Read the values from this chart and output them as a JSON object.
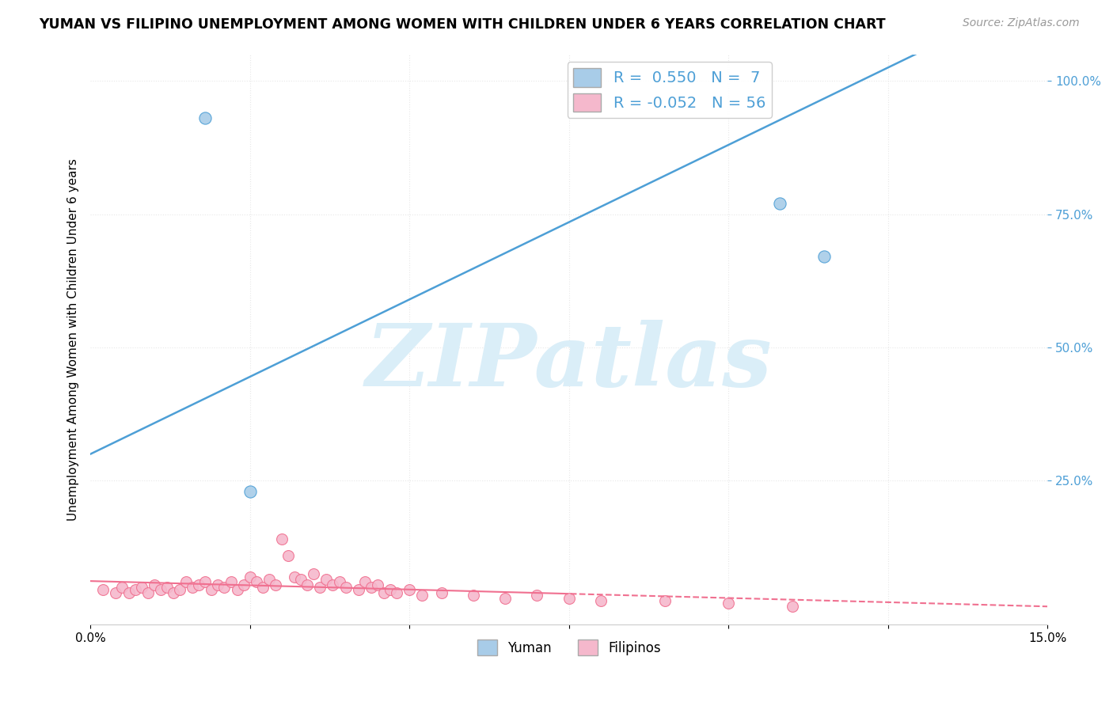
{
  "title": "YUMAN VS FILIPINO UNEMPLOYMENT AMONG WOMEN WITH CHILDREN UNDER 6 YEARS CORRELATION CHART",
  "source": "Source: ZipAtlas.com",
  "ylabel_label": "Unemployment Among Women with Children Under 6 years",
  "xlim": [
    0.0,
    0.15
  ],
  "ylim": [
    -0.02,
    1.05
  ],
  "ytick_vals": [
    0.25,
    0.5,
    0.75,
    1.0
  ],
  "ytick_labels": [
    "25.0%",
    "50.0%",
    "75.0%",
    "100.0%"
  ],
  "xtick_vals": [
    0.0,
    0.025,
    0.05,
    0.075,
    0.1,
    0.125,
    0.15
  ],
  "xtick_labels": [
    "0.0%",
    "",
    "",
    "",
    "",
    "",
    "15.0%"
  ],
  "yuman_points": [
    [
      0.018,
      0.93
    ],
    [
      0.025,
      0.23
    ],
    [
      0.108,
      0.77
    ],
    [
      0.115,
      0.67
    ]
  ],
  "filipinos_points": [
    [
      0.002,
      0.045
    ],
    [
      0.004,
      0.04
    ],
    [
      0.005,
      0.05
    ],
    [
      0.006,
      0.04
    ],
    [
      0.007,
      0.045
    ],
    [
      0.008,
      0.05
    ],
    [
      0.009,
      0.04
    ],
    [
      0.01,
      0.055
    ],
    [
      0.011,
      0.045
    ],
    [
      0.012,
      0.05
    ],
    [
      0.013,
      0.04
    ],
    [
      0.014,
      0.045
    ],
    [
      0.015,
      0.06
    ],
    [
      0.016,
      0.05
    ],
    [
      0.017,
      0.055
    ],
    [
      0.018,
      0.06
    ],
    [
      0.019,
      0.045
    ],
    [
      0.02,
      0.055
    ],
    [
      0.021,
      0.05
    ],
    [
      0.022,
      0.06
    ],
    [
      0.023,
      0.045
    ],
    [
      0.024,
      0.055
    ],
    [
      0.025,
      0.07
    ],
    [
      0.026,
      0.06
    ],
    [
      0.027,
      0.05
    ],
    [
      0.028,
      0.065
    ],
    [
      0.029,
      0.055
    ],
    [
      0.03,
      0.14
    ],
    [
      0.031,
      0.11
    ],
    [
      0.032,
      0.07
    ],
    [
      0.033,
      0.065
    ],
    [
      0.034,
      0.055
    ],
    [
      0.035,
      0.075
    ],
    [
      0.036,
      0.05
    ],
    [
      0.037,
      0.065
    ],
    [
      0.038,
      0.055
    ],
    [
      0.039,
      0.06
    ],
    [
      0.04,
      0.05
    ],
    [
      0.042,
      0.045
    ],
    [
      0.043,
      0.06
    ],
    [
      0.044,
      0.05
    ],
    [
      0.045,
      0.055
    ],
    [
      0.046,
      0.04
    ],
    [
      0.047,
      0.045
    ],
    [
      0.048,
      0.04
    ],
    [
      0.05,
      0.045
    ],
    [
      0.052,
      0.035
    ],
    [
      0.055,
      0.04
    ],
    [
      0.06,
      0.035
    ],
    [
      0.065,
      0.03
    ],
    [
      0.07,
      0.035
    ],
    [
      0.075,
      0.03
    ],
    [
      0.08,
      0.025
    ],
    [
      0.09,
      0.025
    ],
    [
      0.1,
      0.02
    ],
    [
      0.11,
      0.015
    ]
  ],
  "yuman_color": "#a8cce8",
  "filipinos_color": "#f5b8cc",
  "yuman_line_color": "#4d9fd6",
  "filipinos_line_color": "#f07090",
  "yuman_trend": {
    "slope": 5.8,
    "intercept": 0.3
  },
  "filipinos_trend_solid_end": 0.075,
  "watermark_text": "ZIPatlas",
  "watermark_color": "#daeef8",
  "background_color": "#ffffff",
  "grid_color": "#e8e8e8",
  "grid_style": "dotted"
}
